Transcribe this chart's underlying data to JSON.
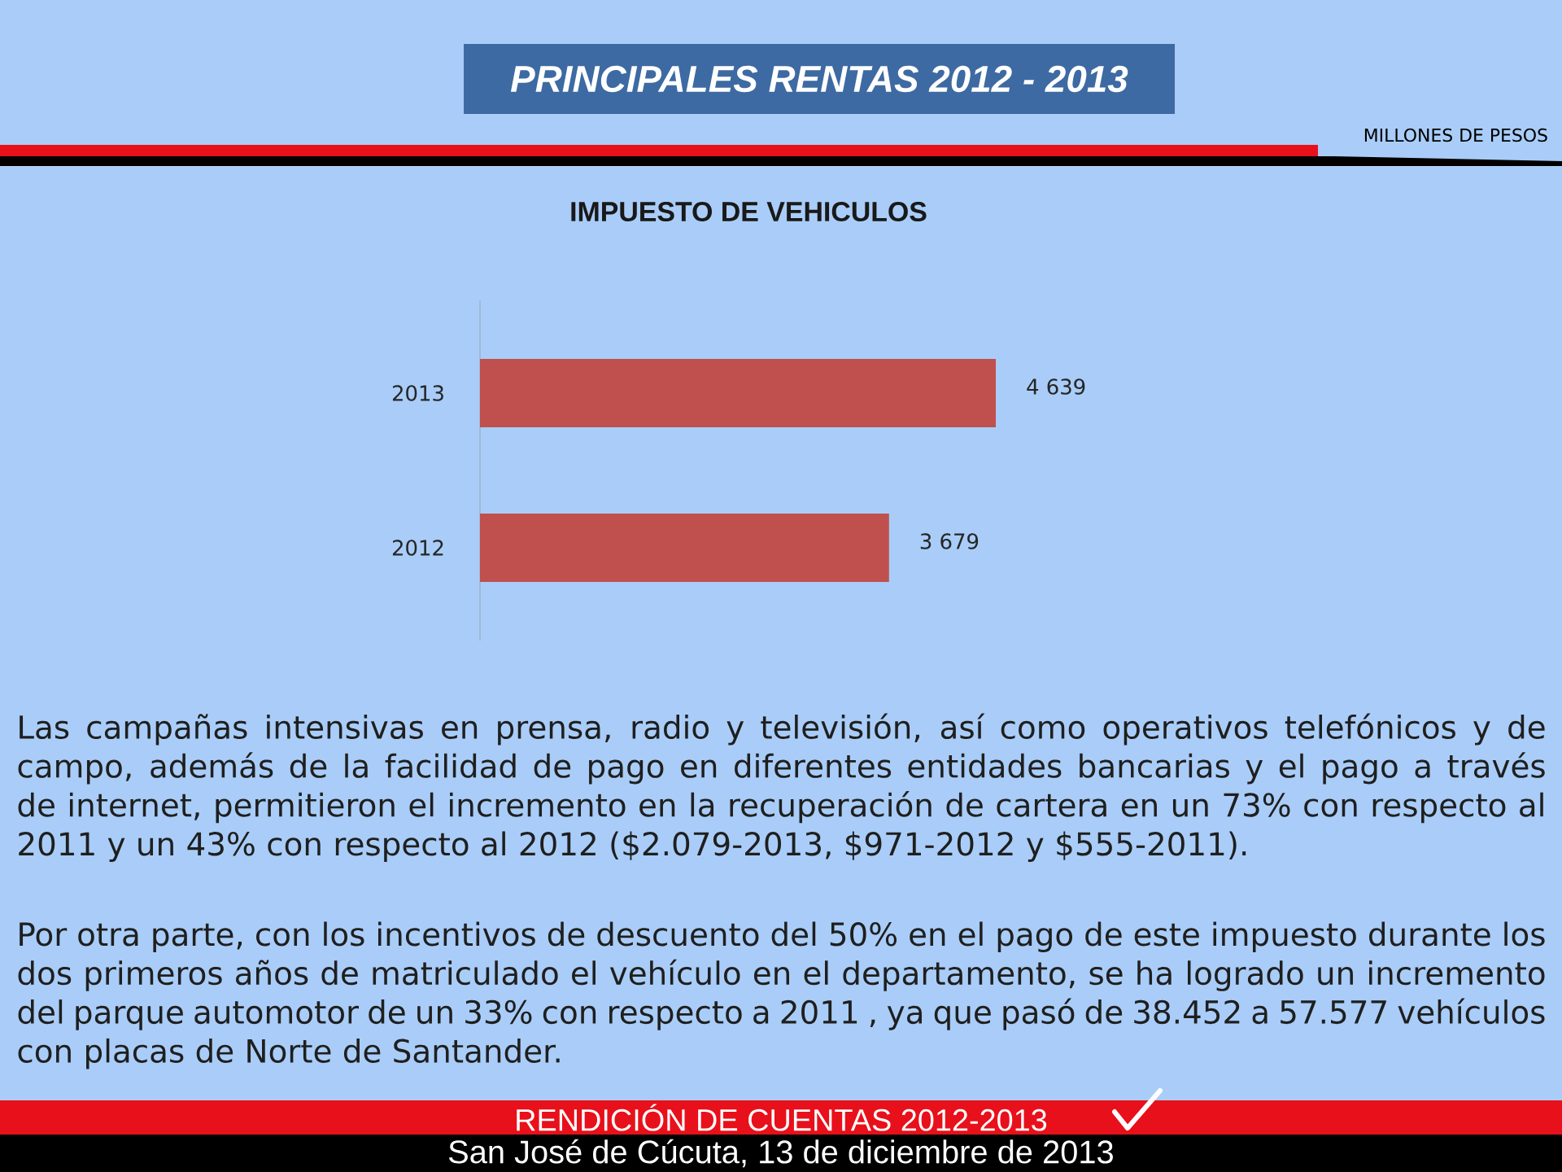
{
  "chart_data": {
    "type": "bar",
    "orientation": "horizontal",
    "title": "PRINCIPALES RENTAS 2012 - 2013",
    "subtitle": "IMPUESTO DE VEHICULOS",
    "categories": [
      "2013",
      "2012"
    ],
    "values": [
      4639,
      3679
    ],
    "color": "#c0504d",
    "value_labels": [
      "4 639",
      "3 679"
    ],
    "tick_labels": "y",
    "annotations": [
      "MILLONES DE PESOS",
      "Las campañas intensivas en prensa, radio y televisión, así como operativos telefónicos y de campo, además de la facilidad de pago en diferentes entidades bancarias y el pago a través de internet, permitieron el incremento en la recuperación de cartera en un 73% con respecto al 2011 y un 43% con respecto al 2012 ($2.079-2013, $971-2012 y $555-2011).",
      "Por otra parte, con los incentivos de descuento del 50% en el pago de este impuesto durante los dos primeros años de matriculado el vehículo en el departamento, se ha logrado un incremento del parque automotor de un 33% con respecto a 2011 , ya que pasó de 38.452 a 57.577 vehículos con placas de Norte de Santander.",
      "RENDICIÓN DE CUENTAS 2012-2013",
      "San José de Cúcuta, 13 de diciembre de 2013"
    ]
  }
}
